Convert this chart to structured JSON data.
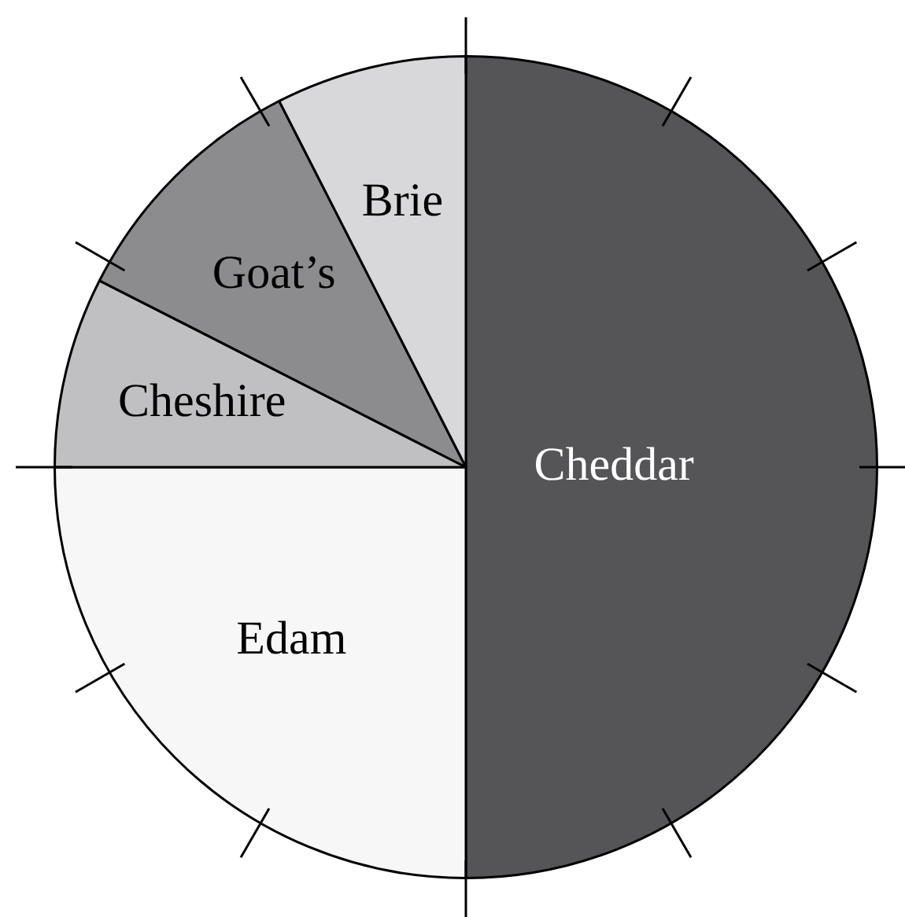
{
  "chart_data": {
    "type": "pie",
    "categories": [
      "Cheddar",
      "Edam",
      "Cheshire",
      "Goat’s",
      "Brie"
    ],
    "values": [
      50,
      25,
      7.5,
      10,
      7.5
    ],
    "colors": [
      "#555558",
      "#f7f7f7",
      "#c0c0c2",
      "#8c8c8e",
      "#d8d8da"
    ]
  }
}
